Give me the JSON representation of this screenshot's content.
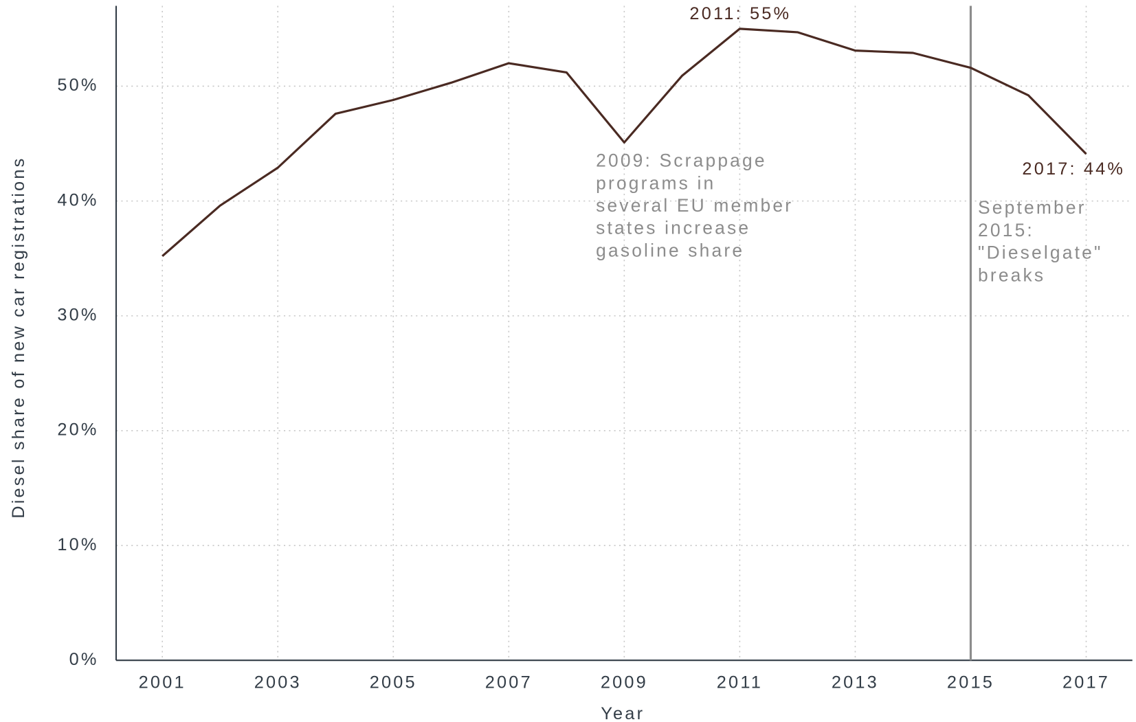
{
  "chart_data": {
    "type": "line",
    "x_label": "Year",
    "y_label": "Diesel share of new car registrations",
    "x": [
      2001,
      2002,
      2003,
      2004,
      2005,
      2006,
      2007,
      2008,
      2009,
      2010,
      2011,
      2012,
      2013,
      2014,
      2015,
      2016,
      2017
    ],
    "series": [
      {
        "name": "Diesel share",
        "color": "#4a2a22",
        "values": [
          35.2,
          39.6,
          42.9,
          47.6,
          48.8,
          50.3,
          52.0,
          51.2,
          45.1,
          50.9,
          55.0,
          54.7,
          53.1,
          52.9,
          51.6,
          49.2,
          44.1
        ]
      }
    ],
    "xlim": [
      2000.2,
      2017.8
    ],
    "ylim": [
      0,
      57
    ],
    "xticks": [
      2001,
      2003,
      2005,
      2007,
      2009,
      2011,
      2013,
      2015,
      2017
    ],
    "yticks": [
      {
        "value": 0,
        "label": "0%"
      },
      {
        "value": 10,
        "label": "10%"
      },
      {
        "value": 20,
        "label": "20%"
      },
      {
        "value": 30,
        "label": "30%"
      },
      {
        "value": 40,
        "label": "40%"
      },
      {
        "value": 50,
        "label": "50%"
      }
    ],
    "grid": true,
    "vline": {
      "x": 2015,
      "color": "#8c8c8c",
      "lines": [
        "September",
        "2015:",
        "\"Dieselgate\"",
        "breaks"
      ]
    },
    "annotations": [
      {
        "text": "2011: 55%"
      },
      {
        "text": "2017: 44%"
      },
      {
        "lines": [
          "2009: Scrappage",
          "programs in",
          "several EU member",
          "states increase",
          "gasoline share"
        ]
      }
    ]
  }
}
